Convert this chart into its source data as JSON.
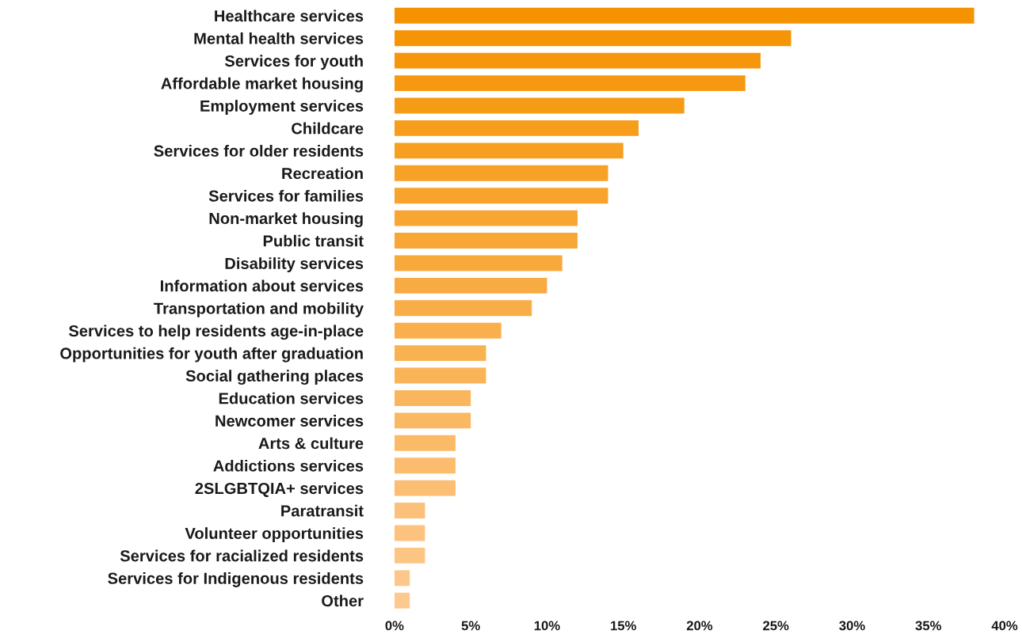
{
  "chart_data": {
    "type": "bar",
    "orientation": "horizontal",
    "categories": [
      "Healthcare services",
      "Mental health services",
      "Services for youth",
      "Affordable market housing",
      "Employment services",
      "Childcare",
      "Services for older residents",
      "Recreation",
      "Services for families",
      "Non-market housing",
      "Public transit",
      "Disability services",
      "Information about services",
      "Transportation and mobility",
      "Services to help residents age-in-place",
      "Opportunities for youth after graduation",
      "Social gathering places",
      "Education services",
      "Newcomer services",
      "Arts & culture",
      "Addictions services",
      "2SLGBTQIA+ services",
      "Paratransit",
      "Volunteer opportunities",
      "Services for racialized residents",
      "Services for Indigenous residents",
      "Other"
    ],
    "values": [
      38,
      26,
      24,
      23,
      19,
      16,
      15,
      14,
      14,
      12,
      12,
      11,
      10,
      9,
      7,
      6,
      6,
      5,
      5,
      4,
      4,
      4,
      2,
      2,
      2,
      1,
      1
    ],
    "colors": [
      "#f59200",
      "#f59405",
      "#f6960b",
      "#f69810",
      "#f69b16",
      "#f69d1b",
      "#f79f21",
      "#f7a126",
      "#f7a32c",
      "#f8a531",
      "#f8a737",
      "#f8a93c",
      "#f8ab42",
      "#f9ad47",
      "#f9af4d",
      "#f9b252",
      "#fab458",
      "#fab65d",
      "#fab863",
      "#faba68",
      "#fbbc6e",
      "#fbbe73",
      "#fbc079",
      "#fcc27e",
      "#fcc584",
      "#fcc789",
      "#fdc98f"
    ],
    "xlim": [
      0,
      40
    ],
    "xticks": [
      {
        "value": 0,
        "label": "0%"
      },
      {
        "value": 5,
        "label": "5%"
      },
      {
        "value": 10,
        "label": "10%"
      },
      {
        "value": 15,
        "label": "15%"
      },
      {
        "value": 20,
        "label": "20%"
      },
      {
        "value": 25,
        "label": "25%"
      },
      {
        "value": 30,
        "label": "30%"
      },
      {
        "value": 35,
        "label": "35%"
      },
      {
        "value": 40,
        "label": "40%"
      }
    ],
    "grid": false,
    "legend": false
  }
}
